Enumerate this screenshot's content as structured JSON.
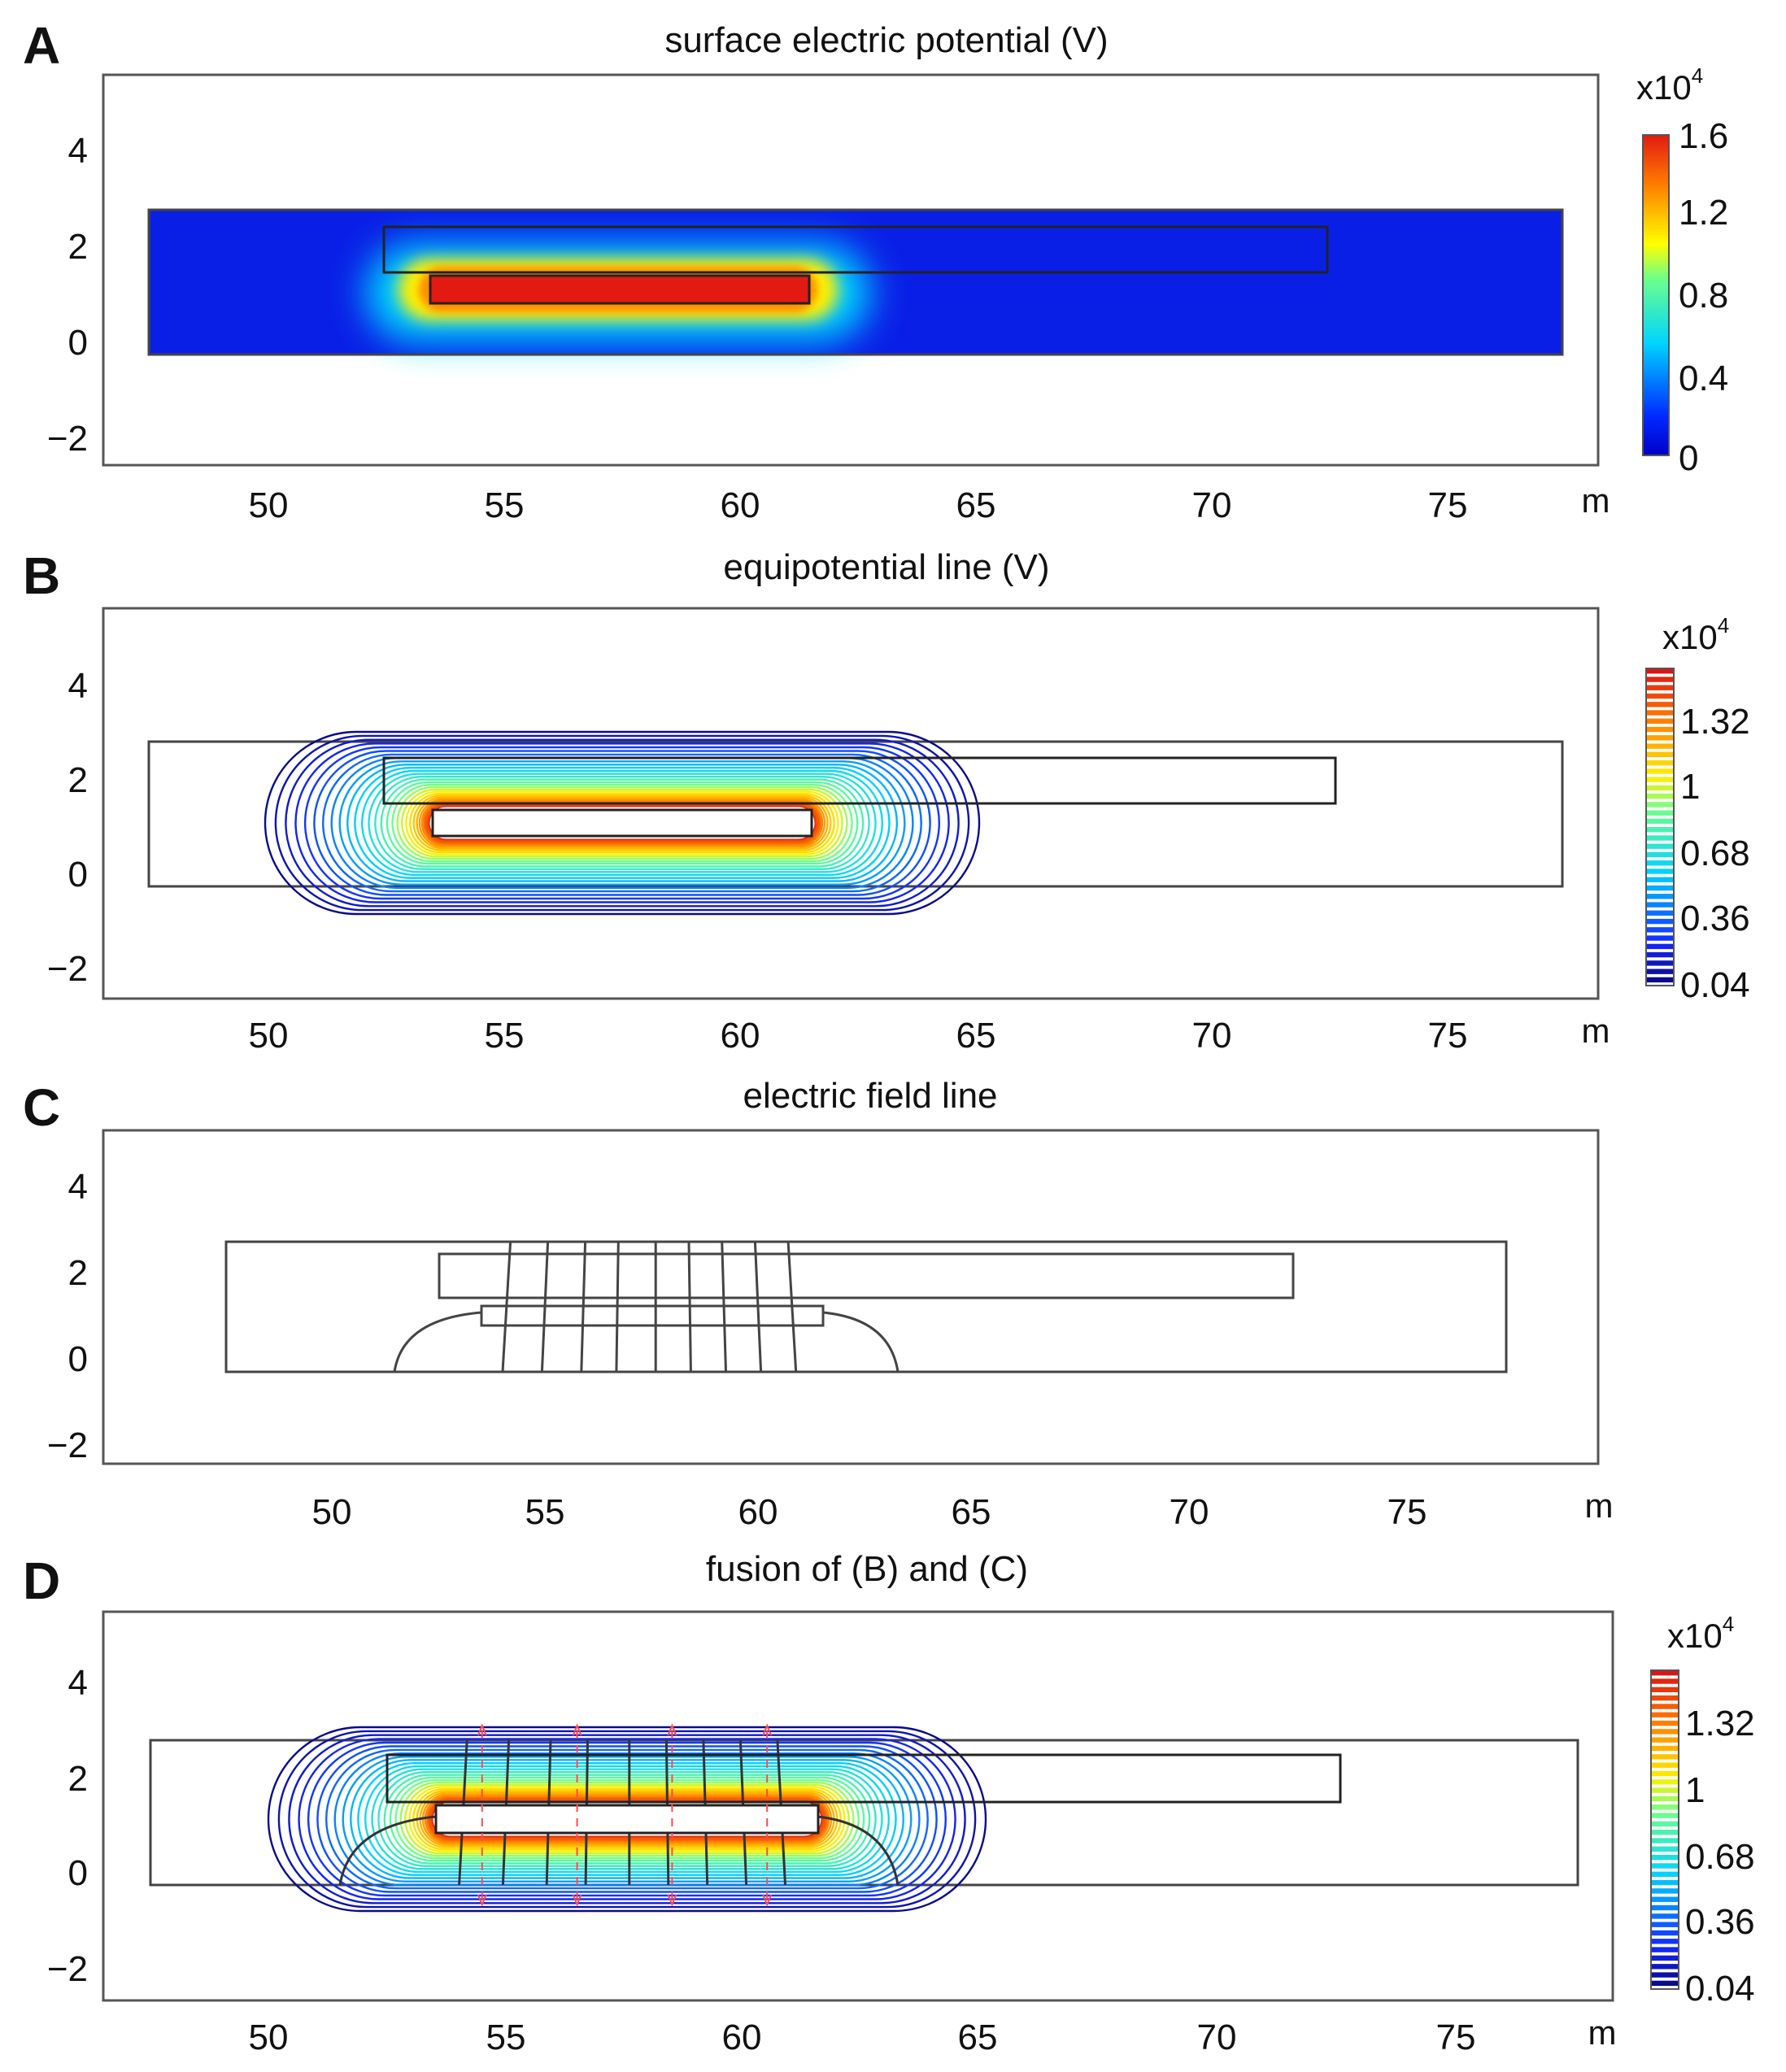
{
  "chart_data": [
    {
      "panel": "A",
      "type": "heatmap",
      "title": "surface electric potential (V)",
      "xlabel": "m",
      "xlim": [
        46.5,
        77.5
      ],
      "ylim": [
        -2.6,
        5.6
      ],
      "xticks": [
        50,
        55,
        60,
        65,
        70,
        75
      ],
      "yticks": [
        -2,
        0,
        2,
        4
      ],
      "domain": {
        "x": [
          47.5,
          77.5
        ],
        "y": [
          -0.3,
          2.75
        ]
      },
      "upper_rect": {
        "x": [
          52.5,
          72.5
        ],
        "y": [
          1.5,
          2.45
        ]
      },
      "electrode": {
        "x": [
          53.5,
          61.5
        ],
        "y": [
          0.8,
          1.35
        ]
      },
      "colorbar": {
        "exponent_label": "x10",
        "exponent": "4",
        "ticks": [
          "1.6",
          "1.2",
          "0.8",
          "0.4",
          "0"
        ],
        "range": [
          0,
          1.6
        ]
      }
    },
    {
      "panel": "B",
      "type": "contour",
      "title": "equipotential line (V)",
      "xlabel": "m",
      "xlim": [
        46.5,
        77.5
      ],
      "ylim": [
        -2.6,
        5.6
      ],
      "xticks": [
        50,
        55,
        60,
        65,
        70,
        75
      ],
      "yticks": [
        -2,
        0,
        2,
        4
      ],
      "domain": {
        "x": [
          47.5,
          77.5
        ],
        "y": [
          -0.3,
          2.75
        ]
      },
      "upper_rect": {
        "x": [
          52.5,
          72.5
        ],
        "y": [
          1.5,
          2.45
        ]
      },
      "electrode": {
        "x": [
          53.5,
          61.5
        ],
        "y": [
          0.8,
          1.35
        ]
      },
      "colorbar": {
        "exponent_label": "x10",
        "exponent": "4",
        "ticks": [
          "1.32",
          "1",
          "0.68",
          "0.36",
          "0.04"
        ],
        "range": [
          0.04,
          1.6
        ]
      }
    },
    {
      "panel": "C",
      "type": "streamline",
      "title": "electric field line",
      "xlabel": "m",
      "xlim": [
        45.5,
        80.5
      ],
      "ylim": [
        -2.4,
        5.4
      ],
      "xticks": [
        50,
        55,
        60,
        65,
        70,
        75
      ],
      "yticks": [
        -2,
        0,
        2,
        4
      ],
      "domain": {
        "x": [
          47.5,
          77.5
        ],
        "y": [
          -0.3,
          2.75
        ]
      },
      "upper_rect": {
        "x": [
          52.5,
          72.5
        ],
        "y": [
          1.5,
          2.45
        ]
      },
      "electrode": {
        "x": [
          53.5,
          61.5
        ],
        "y": [
          0.9,
          1.35
        ]
      },
      "field_lines_x": [
        54.1,
        55.0,
        55.9,
        56.7,
        57.6,
        58.4,
        59.2,
        60.0,
        60.8
      ],
      "colorbar": null
    },
    {
      "panel": "D",
      "type": "contour",
      "title": "fusion of (B) and (C)",
      "xlabel": "m",
      "xlim": [
        46.5,
        77.5
      ],
      "ylim": [
        -2.6,
        5.6
      ],
      "xticks": [
        50,
        55,
        60,
        65,
        70,
        75
      ],
      "yticks": [
        -2,
        0,
        2,
        4
      ],
      "domain": {
        "x": [
          47.5,
          77.5
        ],
        "y": [
          -0.3,
          2.75
        ]
      },
      "upper_rect": {
        "x": [
          52.5,
          72.5
        ],
        "y": [
          1.5,
          2.45
        ]
      },
      "electrode": {
        "x": [
          53.5,
          61.5
        ],
        "y": [
          0.8,
          1.35
        ]
      },
      "field_lines_x": [
        54.1,
        55.0,
        55.9,
        56.7,
        57.6,
        58.4,
        59.2,
        60.0,
        60.8
      ],
      "arrows_x": [
        54.5,
        56.5,
        58.5,
        60.5
      ],
      "colorbar": {
        "exponent_label": "x10",
        "exponent": "4",
        "ticks": [
          "1.32",
          "1",
          "0.68",
          "0.36",
          "0.04"
        ],
        "range": [
          0.04,
          1.6
        ]
      }
    }
  ],
  "colors": {
    "frame": "#555555",
    "boundary": "#444444",
    "red": "#e21a12",
    "deep_blue": "#0a1fe6",
    "contour_blue": "#2b2bb0",
    "arrow_red": "#ff4a4a"
  }
}
